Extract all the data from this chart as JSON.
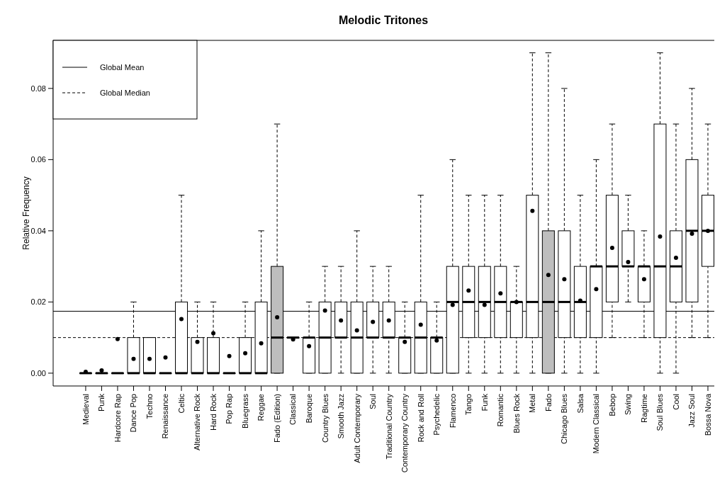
{
  "chart_data": {
    "type": "box",
    "title": "Melodic Tritones",
    "ylabel": "Relative Frequency",
    "categories": [
      "Medieval",
      "Punk",
      "Hardcore Rap",
      "Dance Pop",
      "Techno",
      "Renaissance",
      "Celtic",
      "Alternative Rock",
      "Hard Rock",
      "Pop Rap",
      "Bluegrass",
      "Reggae",
      "Fado (Edition)",
      "Classical",
      "Baroque",
      "Country Blues",
      "Smooth Jazz",
      "Adult Contemporary",
      "Soul",
      "Traditional Country",
      "Contemporary Country",
      "Rock and Roll",
      "Psychedelic",
      "Flamenco",
      "Tango",
      "Funk",
      "Romantic",
      "Blues Rock",
      "Metal",
      "Fado",
      "Chicago Blues",
      "Salsa",
      "Modern Classical",
      "Bebop",
      "Swing",
      "Ragtime",
      "Soul Blues",
      "Cool",
      "Jazz Soul",
      "Bossa Nova"
    ],
    "boxes": [
      {
        "low": 0,
        "q1": 0,
        "median": 0,
        "q3": 0,
        "high": 0
      },
      {
        "low": 0,
        "q1": 0,
        "median": 0,
        "q3": 0,
        "high": 0
      },
      {
        "low": 0,
        "q1": 0,
        "median": 0,
        "q3": 0,
        "high": 0
      },
      {
        "low": 0,
        "q1": 0,
        "median": 0,
        "q3": 0.01,
        "high": 0.02
      },
      {
        "low": 0,
        "q1": 0,
        "median": 0,
        "q3": 0.01,
        "high": 0.01
      },
      {
        "low": 0,
        "q1": 0,
        "median": 0,
        "q3": 0,
        "high": 0
      },
      {
        "low": 0,
        "q1": 0,
        "median": 0,
        "q3": 0.02,
        "high": 0.05
      },
      {
        "low": 0,
        "q1": 0,
        "median": 0,
        "q3": 0.01,
        "high": 0.02
      },
      {
        "low": 0,
        "q1": 0,
        "median": 0,
        "q3": 0.01,
        "high": 0.02
      },
      {
        "low": 0,
        "q1": 0,
        "median": 0,
        "q3": 0,
        "high": 0
      },
      {
        "low": 0,
        "q1": 0,
        "median": 0,
        "q3": 0.01,
        "high": 0.02
      },
      {
        "low": 0,
        "q1": 0,
        "median": 0,
        "q3": 0.02,
        "high": 0.04
      },
      {
        "low": 0,
        "q1": 0,
        "median": 0.01,
        "q3": 0.03,
        "high": 0.07
      },
      {
        "low": 0.01,
        "q1": 0.01,
        "median": 0.01,
        "q3": 0.01,
        "high": 0.01
      },
      {
        "low": 0,
        "q1": 0,
        "median": 0.01,
        "q3": 0.01,
        "high": 0.02
      },
      {
        "low": 0,
        "q1": 0,
        "median": 0.01,
        "q3": 0.02,
        "high": 0.03
      },
      {
        "low": 0,
        "q1": 0.01,
        "median": 0.01,
        "q3": 0.02,
        "high": 0.03
      },
      {
        "low": 0,
        "q1": 0,
        "median": 0.01,
        "q3": 0.02,
        "high": 0.04
      },
      {
        "low": 0,
        "q1": 0.01,
        "median": 0.01,
        "q3": 0.02,
        "high": 0.03
      },
      {
        "low": 0,
        "q1": 0.01,
        "median": 0.01,
        "q3": 0.02,
        "high": 0.03
      },
      {
        "low": 0,
        "q1": 0,
        "median": 0.01,
        "q3": 0.01,
        "high": 0.02
      },
      {
        "low": 0,
        "q1": 0,
        "median": 0.01,
        "q3": 0.02,
        "high": 0.05
      },
      {
        "low": 0,
        "q1": 0,
        "median": 0.01,
        "q3": 0.01,
        "high": 0.02
      },
      {
        "low": 0,
        "q1": 0,
        "median": 0.02,
        "q3": 0.03,
        "high": 0.06
      },
      {
        "low": 0,
        "q1": 0.01,
        "median": 0.02,
        "q3": 0.03,
        "high": 0.05
      },
      {
        "low": 0,
        "q1": 0.01,
        "median": 0.02,
        "q3": 0.03,
        "high": 0.05
      },
      {
        "low": 0,
        "q1": 0.01,
        "median": 0.02,
        "q3": 0.03,
        "high": 0.05
      },
      {
        "low": 0,
        "q1": 0.01,
        "median": 0.02,
        "q3": 0.02,
        "high": 0.03
      },
      {
        "low": 0,
        "q1": 0.01,
        "median": 0.02,
        "q3": 0.05,
        "high": 0.09
      },
      {
        "low": 0,
        "q1": 0,
        "median": 0.02,
        "q3": 0.04,
        "high": 0.09
      },
      {
        "low": 0,
        "q1": 0.01,
        "median": 0.02,
        "q3": 0.04,
        "high": 0.08
      },
      {
        "low": 0,
        "q1": 0.01,
        "median": 0.02,
        "q3": 0.03,
        "high": 0.05
      },
      {
        "low": 0,
        "q1": 0.01,
        "median": 0.03,
        "q3": 0.03,
        "high": 0.06
      },
      {
        "low": 0.01,
        "q1": 0.02,
        "median": 0.03,
        "q3": 0.05,
        "high": 0.07
      },
      {
        "low": 0.02,
        "q1": 0.03,
        "median": 0.03,
        "q3": 0.04,
        "high": 0.05
      },
      {
        "low": 0.01,
        "q1": 0.02,
        "median": 0.03,
        "q3": 0.03,
        "high": 0.04
      },
      {
        "low": 0,
        "q1": 0.01,
        "median": 0.03,
        "q3": 0.07,
        "high": 0.09
      },
      {
        "low": 0,
        "q1": 0.02,
        "median": 0.03,
        "q3": 0.04,
        "high": 0.07
      },
      {
        "low": 0.01,
        "q1": 0.02,
        "median": 0.04,
        "q3": 0.06,
        "high": 0.08
      },
      {
        "low": 0.01,
        "q1": 0.03,
        "median": 0.04,
        "q3": 0.05,
        "high": 0.07
      }
    ],
    "colors": [
      "#ffffff",
      "#ffffff",
      "#ffffff",
      "#ffffff",
      "#ffffff",
      "#ffffff",
      "#ffffff",
      "#ffffff",
      "#ffffff",
      "#ffffff",
      "#ffffff",
      "#ffffff",
      "#bebebe",
      "#ffffff",
      "#ffffff",
      "#ffffff",
      "#ffffff",
      "#ffffff",
      "#ffffff",
      "#ffffff",
      "#ffffff",
      "#ffffff",
      "#ffffff",
      "#ffffff",
      "#ffffff",
      "#ffffff",
      "#ffffff",
      "#ffffff",
      "#ffffff",
      "#bebebe",
      "#ffffff",
      "#ffffff",
      "#ffffff",
      "#ffffff",
      "#ffffff",
      "#ffffff",
      "#ffffff",
      "#ffffff",
      "#ffffff",
      "#ffffff"
    ],
    "series": [
      {
        "type": "scatter",
        "color": "#000000",
        "marker": "circle",
        "x": [
          "Medieval",
          "Punk",
          "Hardcore Rap",
          "Dance Pop",
          "Techno",
          "Renaissance",
          "Celtic",
          "Alternative Rock",
          "Hard Rock",
          "Pop Rap",
          "Bluegrass",
          "Reggae",
          "Fado (Edition)",
          "Classical",
          "Baroque",
          "Country Blues",
          "Smooth Jazz",
          "Adult Contemporary",
          "Soul",
          "Traditional Country",
          "Contemporary Country",
          "Rock and Roll",
          "Psychedelic",
          "Flamenco",
          "Tango",
          "Funk",
          "Romantic",
          "Blues Rock",
          "Metal",
          "Fado",
          "Chicago Blues",
          "Salsa",
          "Modern Classical",
          "Bebop",
          "Swing",
          "Ragtime",
          "Soul Blues",
          "Cool",
          "Jazz Soul",
          "Bossa Nova"
        ],
        "values": [
          0.0004,
          0.0008,
          0.0096,
          0.004,
          0.004,
          0.0044,
          0.0152,
          0.0088,
          0.0112,
          0.0048,
          0.0056,
          0.0084,
          0.0157,
          0.0095,
          0.0076,
          0.0176,
          0.0148,
          0.012,
          0.0144,
          0.0148,
          0.0088,
          0.0136,
          0.0092,
          0.0192,
          0.0232,
          0.0192,
          0.0224,
          0.02,
          0.0456,
          0.0276,
          0.0264,
          0.0204,
          0.0236,
          0.0352,
          0.0312,
          0.0264,
          0.0384,
          0.0324,
          0.0392,
          0.04
        ]
      }
    ],
    "ylim": [
      -0.0036,
      0.0935
    ],
    "yticks": [
      {
        "value": 0,
        "label": "0.00"
      },
      {
        "value": 0.02,
        "label": "0.02"
      },
      {
        "value": 0.04,
        "label": "0.04"
      },
      {
        "value": 0.06,
        "label": "0.06"
      },
      {
        "value": 0.08,
        "label": "0.08"
      }
    ],
    "ref_lines": [
      {
        "axis": "y",
        "value": 0.0174,
        "label": "Global Mean",
        "line_style": "solid",
        "color": "#000000"
      },
      {
        "axis": "y",
        "value": 0.01,
        "label": "Global Median",
        "line_style": "dashed",
        "color": "#000000"
      }
    ],
    "legend": "top left",
    "grid": false
  }
}
